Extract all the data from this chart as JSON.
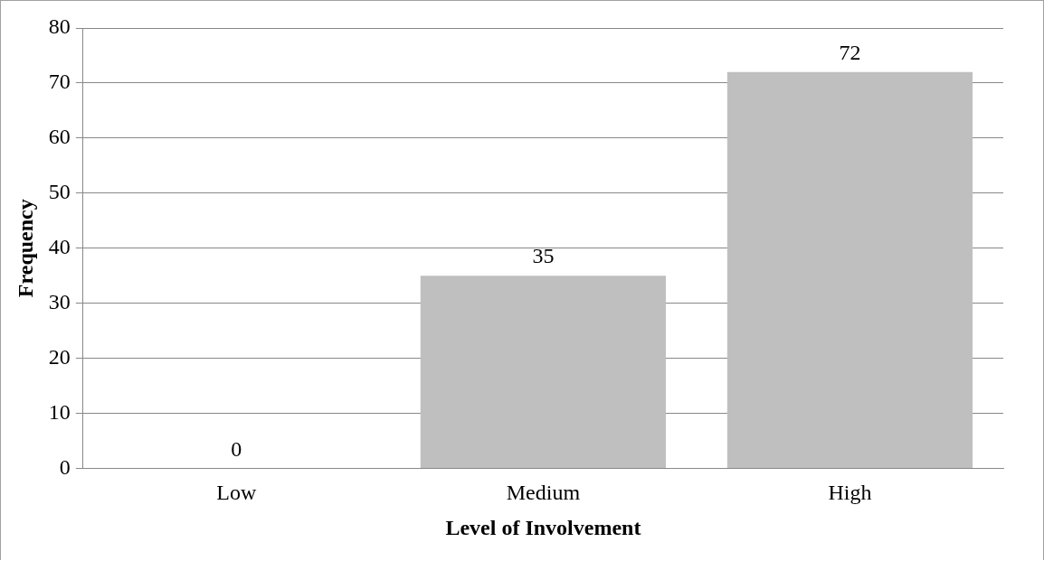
{
  "chart_data": {
    "type": "bar",
    "xlabel": "Level of Involvement",
    "ylabel": "Frequency",
    "categories": [
      "Low",
      "Medium",
      "High"
    ],
    "values": [
      0,
      35,
      72
    ],
    "color": "#bfbfbf",
    "ylim": [
      0,
      80
    ],
    "yticks": [
      0,
      10,
      20,
      30,
      40,
      50,
      60,
      70,
      80
    ],
    "grid": "y",
    "data_labels": true,
    "legend": false
  }
}
